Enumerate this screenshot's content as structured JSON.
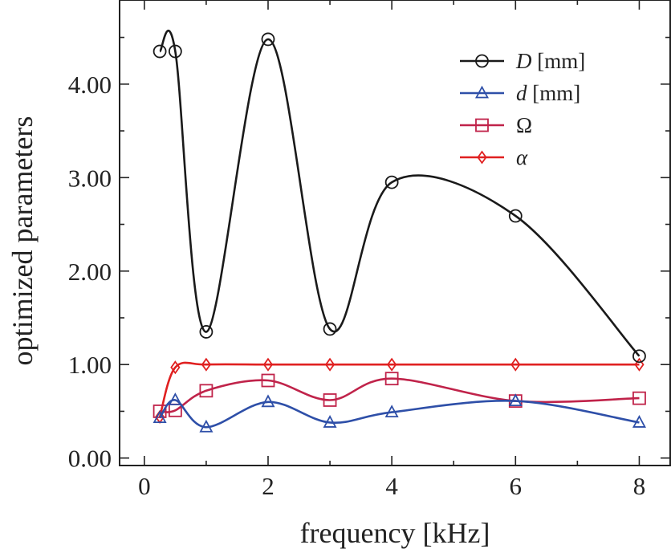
{
  "chart_data": {
    "type": "line",
    "xlabel": "frequency [kHz]",
    "ylabel": "optimized parameters",
    "xlim": [
      -0.4,
      8.5
    ],
    "ylim": [
      -0.08,
      4.9
    ],
    "xticks": [
      0,
      2,
      4,
      6,
      8
    ],
    "xtick_labels": [
      "0",
      "2",
      "4",
      "6",
      "8"
    ],
    "xticks_minor": [
      1,
      3,
      5,
      7
    ],
    "yticks": [
      0,
      1,
      2,
      3,
      4
    ],
    "ytick_labels": [
      "0.00",
      "1.00",
      "2.00",
      "3.00",
      "4.00"
    ],
    "yticks_minor": [
      0.5,
      1.5,
      2.5,
      3.5,
      4.5
    ],
    "legend_position": "top-right",
    "series": [
      {
        "key": "D",
        "name": "D",
        "unit": " [mm]",
        "color": "#1a1a1a",
        "marker": "circle",
        "x": [
          0.25,
          0.5,
          1,
          2,
          3,
          4,
          6,
          8
        ],
        "y": [
          4.35,
          4.35,
          1.35,
          4.48,
          1.38,
          2.95,
          2.59,
          1.09
        ]
      },
      {
        "key": "d",
        "name": "d",
        "unit": " [mm]",
        "color": "#2e4fa8",
        "marker": "triangle",
        "x": [
          0.25,
          0.5,
          1,
          2,
          3,
          4,
          6,
          8
        ],
        "y": [
          0.43,
          0.62,
          0.33,
          0.6,
          0.38,
          0.49,
          0.61,
          0.38
        ]
      },
      {
        "key": "omega",
        "name": "Ω",
        "unit": "",
        "color": "#c0234a",
        "marker": "square",
        "x": [
          0.25,
          0.5,
          1,
          2,
          3,
          4,
          6,
          8
        ],
        "y": [
          0.5,
          0.51,
          0.72,
          0.83,
          0.62,
          0.85,
          0.61,
          0.64
        ]
      },
      {
        "key": "alpha",
        "name": "α",
        "unit": "",
        "color": "#e02020",
        "marker": "diamond",
        "x": [
          0.25,
          0.5,
          1,
          2,
          3,
          4,
          6,
          8
        ],
        "y": [
          0.44,
          0.97,
          1.0,
          1.0,
          1.0,
          1.0,
          1.0,
          1.0
        ]
      }
    ]
  }
}
